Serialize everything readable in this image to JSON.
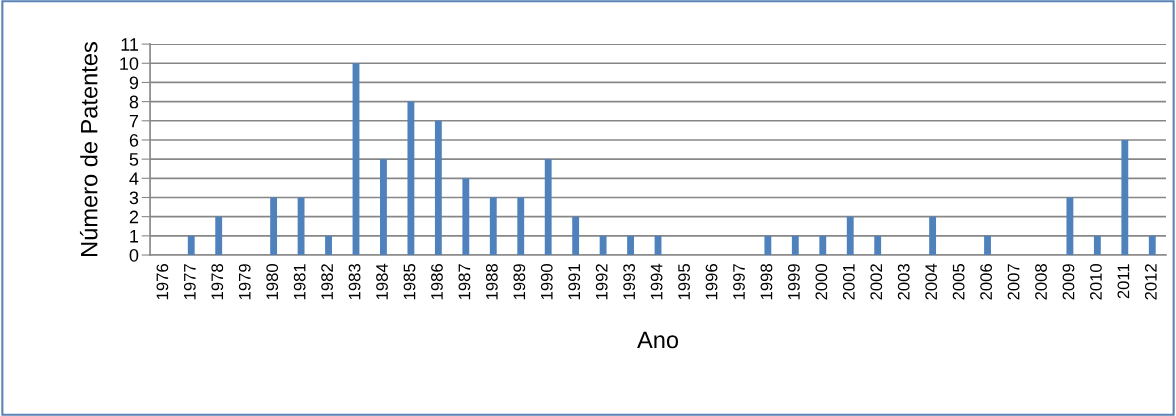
{
  "chart_data": {
    "type": "bar",
    "xlabel": "Ano",
    "ylabel": "Número de Patentes",
    "categories": [
      "1976",
      "1977",
      "1978",
      "1979",
      "1980",
      "1981",
      "1982",
      "1983",
      "1984",
      "1985",
      "1986",
      "1987",
      "1988",
      "1989",
      "1990",
      "1991",
      "1992",
      "1993",
      "1994",
      "1995",
      "1996",
      "1997",
      "1998",
      "1999",
      "2000",
      "2001",
      "2002",
      "2003",
      "2004",
      "2005",
      "2006",
      "2007",
      "2008",
      "2009",
      "2010",
      "2011",
      "2012"
    ],
    "values": [
      0,
      1,
      2,
      0,
      3,
      3,
      1,
      10,
      5,
      8,
      7,
      4,
      3,
      3,
      5,
      2,
      1,
      1,
      1,
      0,
      0,
      0,
      1,
      1,
      1,
      2,
      1,
      0,
      2,
      0,
      1,
      0,
      0,
      3,
      1,
      6,
      1
    ],
    "color": "#4f81bd",
    "ylim": [
      0,
      11
    ],
    "yticks": [
      0,
      1,
      2,
      3,
      4,
      5,
      6,
      7,
      8,
      9,
      10,
      11
    ],
    "grid": "y"
  }
}
